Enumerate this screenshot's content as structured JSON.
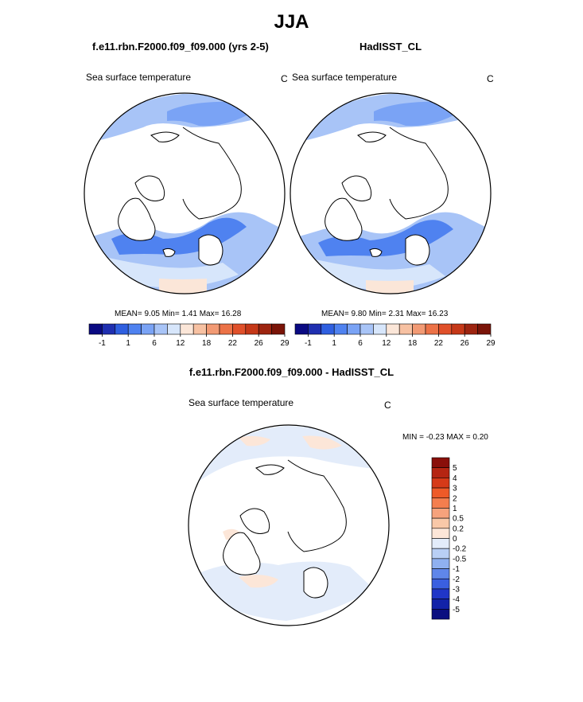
{
  "page_title": "JJA",
  "panels": {
    "left": {
      "title": "f.e11.rbn.F2000.f09_f09.000 (yrs 2-5)",
      "variable": "Sea surface temperature",
      "units": "C",
      "stats_line": "MEAN=   9.05  Min=   1.41  Max=  16.28"
    },
    "right": {
      "title": "HadISST_CL",
      "variable": "Sea surface temperature",
      "units": "C",
      "stats_line": "MEAN=   9.80  Min=   2.31  Max=  16.23"
    },
    "diff": {
      "title": "f.e11.rbn.F2000.f09_f09.000 - HadISST_CL",
      "variable": "Sea surface temperature",
      "units": "C",
      "minmax_line": "MIN =  -0.23 MAX =   0.20"
    }
  },
  "chart_data": [
    {
      "type": "heatmap",
      "title": "f.e11.rbn.F2000.f09_f09.000 (yrs 2-5)",
      "subtitle": "Sea surface temperature",
      "units": "C",
      "projection": "north polar stereographic",
      "mean": 9.05,
      "min": 1.41,
      "max": 16.28,
      "colorbar_ticks": [
        "-1",
        "1",
        "6",
        "12",
        "18",
        "22",
        "26",
        "29"
      ],
      "colorbar_colors": [
        "#0a0a82",
        "#1f2fb0",
        "#2f5fe0",
        "#4f82f0",
        "#7aa3f5",
        "#a8c4f7",
        "#d7e6fb",
        "#fbe6d8",
        "#f7c1a2",
        "#f29a74",
        "#ec7247",
        "#e0502a",
        "#c53818",
        "#9d2410",
        "#7a1408"
      ]
    },
    {
      "type": "heatmap",
      "title": "HadISST_CL",
      "subtitle": "Sea surface temperature",
      "units": "C",
      "projection": "north polar stereographic",
      "mean": 9.8,
      "min": 2.31,
      "max": 16.23,
      "colorbar_ticks": [
        "-1",
        "1",
        "6",
        "12",
        "18",
        "22",
        "26",
        "29"
      ],
      "colorbar_colors": [
        "#0a0a82",
        "#1f2fb0",
        "#2f5fe0",
        "#4f82f0",
        "#7aa3f5",
        "#a8c4f7",
        "#d7e6fb",
        "#fbe6d8",
        "#f7c1a2",
        "#f29a74",
        "#ec7247",
        "#e0502a",
        "#c53818",
        "#9d2410",
        "#7a1408"
      ]
    },
    {
      "type": "heatmap",
      "title": "f.e11.rbn.F2000.f09_f09.000 - HadISST_CL",
      "subtitle": "Sea surface temperature",
      "units": "C",
      "projection": "north polar stereographic",
      "min": -0.23,
      "max": 0.2,
      "colorbar_ticks": [
        "5",
        "4",
        "3",
        "2",
        "1",
        "0.5",
        "0.2",
        "0",
        "-0.2",
        "-0.5",
        "-1",
        "-2",
        "-3",
        "-4",
        "-5"
      ],
      "colorbar_colors": [
        "#8a0f0a",
        "#b52512",
        "#d63a18",
        "#ee5a28",
        "#f47e4e",
        "#f6a27c",
        "#f9c8a8",
        "#fce6d8",
        "#e3ecfa",
        "#b9cff5",
        "#8fb0f0",
        "#5f86ea",
        "#3a5fe0",
        "#2036c8",
        "#1222a8",
        "#0b0f80"
      ]
    }
  ]
}
